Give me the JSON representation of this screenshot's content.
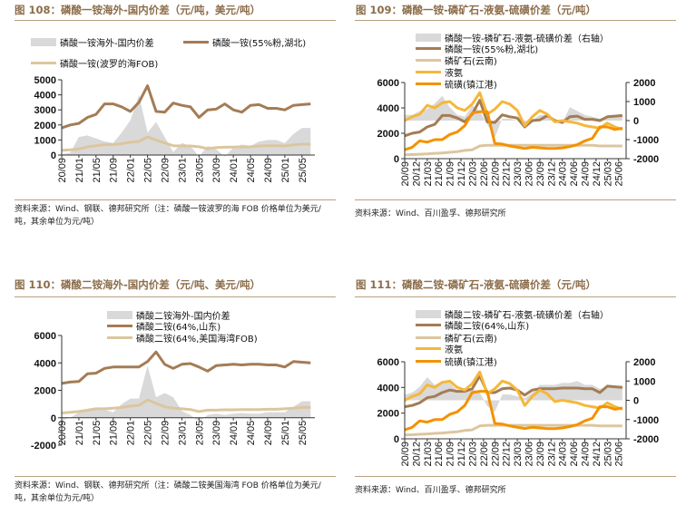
{
  "panels": [
    {
      "title": "图 108：磷酸一铵海外-国内价差（元/吨，美元/吨）",
      "source": "资料来源：Wind、钢联、德邦研究所（注：磷酸一铵波罗的海 FOB 价格单位为美元/吨，其余单位为元/吨）"
    },
    {
      "title": "图 109：磷酸一铵-磷矿石-液氨-硫磺价差（元/吨）",
      "source": "资料来源：Wind、百川盈孚、德邦研究所"
    },
    {
      "title": "图 110：磷酸二铵海外-国内价差（元/吨、美元/吨）",
      "source": "资料来源：Wind、钢联、德邦研究所（注：磷酸二铵美国海湾 FOB 价格单位为美元/吨，其余单位为元/吨）"
    },
    {
      "title": "图 111：磷酸二铵-磷矿石-液氨-硫磺价差（元/吨）",
      "source": "资料来源：Wind、百川盈孚、德邦研究所"
    }
  ],
  "chart_data": [
    {
      "type": "line",
      "title": "图 108：磷酸一铵海外-国内价差（元/吨，美元/吨）",
      "ylim": [
        0,
        5000
      ],
      "yticks": [
        0,
        1000,
        2000,
        3000,
        4000,
        5000
      ],
      "xlim": [
        "20/09",
        "25/08"
      ],
      "xticks": [
        "20/09",
        "21/01",
        "21/05",
        "21/09",
        "22/01",
        "22/05",
        "22/09",
        "23/01",
        "23/05",
        "23/09",
        "24/01",
        "24/05",
        "24/09",
        "25/01",
        "25/05"
      ],
      "x": [
        "20/09",
        "20/11",
        "21/01",
        "21/03",
        "21/05",
        "21/07",
        "21/09",
        "21/11",
        "22/01",
        "22/03",
        "22/05",
        "22/07",
        "22/09",
        "22/11",
        "23/01",
        "23/03",
        "23/05",
        "23/07",
        "23/09",
        "23/11",
        "24/01",
        "24/03",
        "24/05",
        "24/07",
        "24/09",
        "24/11",
        "25/01",
        "25/03",
        "25/05",
        "25/07"
      ],
      "legend": "top",
      "series": [
        {
          "name": "磷酸一铵海外-国内价差",
          "kind": "area",
          "axis": "left",
          "color": "#d9d9d9",
          "values": [
            50,
            150,
            1200,
            1300,
            1100,
            900,
            800,
            1500,
            2300,
            4000,
            1500,
            2200,
            1200,
            200,
            800,
            600,
            -100,
            600,
            400,
            -100,
            500,
            700,
            600,
            900,
            1000,
            1000,
            800,
            1400,
            1800,
            1800
          ]
        },
        {
          "name": "磷酸一铵(55%粉,湖北)",
          "kind": "line",
          "axis": "left",
          "color": "#a47c55",
          "values": [
            1800,
            2000,
            2100,
            2500,
            2700,
            3400,
            3400,
            3200,
            2900,
            3500,
            4600,
            2900,
            2850,
            3450,
            3300,
            3200,
            2500,
            3000,
            3050,
            3400,
            3000,
            2850,
            3300,
            3350,
            3100,
            3100,
            3000,
            3300,
            3350,
            3400
          ]
        },
        {
          "name": "磷酸一铵(波罗的海FOB)",
          "kind": "line",
          "axis": "left",
          "color": "#dcc69f",
          "values": [
            320,
            350,
            400,
            550,
            620,
            700,
            700,
            750,
            850,
            900,
            1200,
            1000,
            800,
            620,
            600,
            600,
            550,
            420,
            500,
            520,
            530,
            540,
            550,
            600,
            620,
            620,
            600,
            680,
            720,
            720
          ]
        }
      ]
    },
    {
      "type": "line",
      "title": "图 109：磷酸一铵-磷矿石-液氨-硫磺价差（元/吨）",
      "ylim": [
        0,
        6000
      ],
      "yticks": [
        0,
        2000,
        4000,
        6000
      ],
      "y2lim": [
        -2000,
        2000
      ],
      "y2ticks": [
        -2000,
        -1000,
        0,
        1000,
        2000
      ],
      "xlim": [
        "20/09",
        "25/08"
      ],
      "xticks": [
        "20/09",
        "20/12",
        "21/03",
        "21/06",
        "21/09",
        "21/12",
        "22/03",
        "22/06",
        "22/09",
        "22/12",
        "23/03",
        "23/06",
        "23/09",
        "23/12",
        "24/03",
        "24/06",
        "24/09",
        "24/12",
        "25/03",
        "25/06"
      ],
      "x": [
        "20/09",
        "20/11",
        "21/01",
        "21/03",
        "21/05",
        "21/07",
        "21/09",
        "21/11",
        "22/01",
        "22/03",
        "22/05",
        "22/07",
        "22/09",
        "22/11",
        "23/01",
        "23/03",
        "23/05",
        "23/07",
        "23/09",
        "23/11",
        "24/01",
        "24/03",
        "24/05",
        "24/07",
        "24/09",
        "24/11",
        "25/01",
        "25/03",
        "25/05",
        "25/07"
      ],
      "legend": "top",
      "series": [
        {
          "name": "磷酸一铵-磷矿石-液氨-硫磺价差（右轴）",
          "kind": "area",
          "axis": "right",
          "color": "#d9d9d9",
          "values": [
            300,
            300,
            500,
            600,
            900,
            1300,
            700,
            300,
            200,
            800,
            500,
            -200,
            -900,
            100,
            100,
            0,
            -300,
            0,
            300,
            300,
            0,
            -100,
            700,
            500,
            300,
            200,
            100,
            200,
            300,
            300
          ]
        },
        {
          "name": "磷酸一铵(55%粉,湖北)",
          "kind": "line",
          "axis": "left",
          "color": "#a47c55",
          "values": [
            1800,
            2000,
            2100,
            2500,
            2700,
            3400,
            3400,
            3200,
            2900,
            3500,
            4600,
            2900,
            2850,
            3450,
            3300,
            3200,
            2500,
            3000,
            3050,
            3400,
            3000,
            2850,
            3300,
            3350,
            3100,
            3100,
            3000,
            3300,
            3350,
            3400
          ]
        },
        {
          "name": "磷矿石(云南)",
          "kind": "line",
          "axis": "left",
          "color": "#dcc69f",
          "values": [
            300,
            320,
            350,
            380,
            420,
            450,
            500,
            550,
            650,
            700,
            1000,
            1050,
            1050,
            1050,
            1050,
            1050,
            1050,
            1050,
            1050,
            1050,
            1050,
            1050,
            1050,
            1050,
            1050,
            1050,
            1000,
            1000,
            1000,
            1000
          ]
        },
        {
          "name": "液氨",
          "kind": "line",
          "axis": "left",
          "color": "#f5b73b",
          "values": [
            3000,
            3300,
            3500,
            4200,
            4000,
            4400,
            4500,
            4000,
            3800,
            4300,
            5200,
            3500,
            3900,
            4500,
            4300,
            3800,
            2600,
            3300,
            3800,
            3500,
            2900,
            3000,
            2900,
            2800,
            2600,
            2500,
            2400,
            2800,
            2500,
            2300
          ]
        },
        {
          "name": "硫磺(镇江港)",
          "kind": "line",
          "axis": "left",
          "color": "#f39200",
          "values": [
            700,
            900,
            1400,
            1300,
            1500,
            1500,
            1900,
            2100,
            2600,
            3600,
            3700,
            3700,
            1200,
            1150,
            1000,
            900,
            800,
            900,
            850,
            800,
            800,
            850,
            950,
            1100,
            1400,
            1600,
            2500,
            2500,
            2300,
            2400
          ]
        }
      ]
    },
    {
      "type": "line",
      "title": "图 110：磷酸二铵海外-国内价差（元/吨、美元/吨）",
      "ylim": [
        -2000,
        6000
      ],
      "yticks": [
        -2000,
        0,
        2000,
        4000,
        6000
      ],
      "xlim": [
        "20/09",
        "25/08"
      ],
      "xticks": [
        "20/09",
        "21/01",
        "21/05",
        "21/09",
        "22/01",
        "22/05",
        "22/09",
        "23/01",
        "23/05",
        "23/09",
        "24/01",
        "24/05",
        "24/09",
        "25/01",
        "25/05"
      ],
      "x": [
        "20/09",
        "20/11",
        "21/01",
        "21/03",
        "21/05",
        "21/07",
        "21/09",
        "21/11",
        "22/01",
        "22/03",
        "22/05",
        "22/07",
        "22/09",
        "22/11",
        "23/01",
        "23/03",
        "23/05",
        "23/07",
        "23/09",
        "23/11",
        "24/01",
        "24/03",
        "24/05",
        "24/07",
        "24/09",
        "24/11",
        "25/01",
        "25/03",
        "25/05",
        "25/07"
      ],
      "legend": "top",
      "series": [
        {
          "name": "磷酸二铵海外-国内价差",
          "kind": "area",
          "axis": "left",
          "color": "#d9d9d9",
          "values": [
            -200,
            0,
            400,
            500,
            600,
            600,
            400,
            1000,
            1400,
            1400,
            3800,
            1500,
            1800,
            1500,
            500,
            200,
            -300,
            200,
            300,
            200,
            300,
            350,
            300,
            300,
            400,
            400,
            400,
            800,
            1200,
            1200
          ]
        },
        {
          "name": "磷酸二铵(64%,山东)",
          "kind": "line",
          "axis": "left",
          "color": "#a47c55",
          "values": [
            2500,
            2600,
            2650,
            3200,
            3250,
            3600,
            3700,
            3700,
            3700,
            3700,
            4100,
            4800,
            3900,
            3600,
            3900,
            3950,
            3700,
            3400,
            3800,
            3850,
            3900,
            3850,
            3900,
            3900,
            3850,
            3850,
            3700,
            4100,
            4050,
            4000
          ]
        },
        {
          "name": "磷酸二铵(64%,美国海湾FOB)",
          "kind": "line",
          "axis": "left",
          "color": "#dcc69f",
          "values": [
            350,
            400,
            450,
            550,
            650,
            650,
            700,
            750,
            850,
            900,
            1300,
            1050,
            800,
            700,
            650,
            600,
            450,
            550,
            550,
            580,
            580,
            600,
            600,
            600,
            620,
            620,
            650,
            700,
            750,
            750
          ]
        }
      ]
    },
    {
      "type": "line",
      "title": "图 111：磷酸二铵-磷矿石-液氨-硫磺价差（元/吨）",
      "ylim": [
        0,
        6000
      ],
      "yticks": [
        0,
        2000,
        4000,
        6000
      ],
      "y2lim": [
        -2000,
        2000
      ],
      "y2ticks": [
        -2000,
        -1000,
        0,
        1000,
        2000
      ],
      "xlim": [
        "20/09",
        "25/08"
      ],
      "xticks": [
        "20/09",
        "20/12",
        "21/03",
        "21/06",
        "21/09",
        "21/12",
        "22/03",
        "22/06",
        "22/09",
        "22/12",
        "23/03",
        "23/06",
        "23/09",
        "23/12",
        "24/03",
        "24/06",
        "24/09",
        "24/12",
        "25/03",
        "25/06"
      ],
      "x": [
        "20/09",
        "20/11",
        "21/01",
        "21/03",
        "21/05",
        "21/07",
        "21/09",
        "21/11",
        "22/01",
        "22/03",
        "22/05",
        "22/07",
        "22/09",
        "22/11",
        "23/01",
        "23/03",
        "23/05",
        "23/07",
        "23/09",
        "23/11",
        "24/01",
        "24/03",
        "24/05",
        "24/07",
        "24/09",
        "24/11",
        "25/01",
        "25/03",
        "25/05",
        "25/07"
      ],
      "legend": "top",
      "series": [
        {
          "name": "磷酸二铵-磷矿石-液氨-硫磺价差（右轴）",
          "kind": "area",
          "axis": "right",
          "color": "#d9d9d9",
          "values": [
            300,
            400,
            700,
            1200,
            800,
            1000,
            900,
            500,
            500,
            600,
            400,
            -300,
            -600,
            300,
            300,
            200,
            100,
            400,
            800,
            800,
            800,
            900,
            900,
            1000,
            800,
            800,
            600,
            700,
            700,
            700
          ]
        },
        {
          "name": "磷酸二铵(64%,山东)",
          "kind": "line",
          "axis": "left",
          "color": "#a47c55",
          "values": [
            2500,
            2600,
            2800,
            3200,
            3300,
            3600,
            3800,
            3700,
            3700,
            3900,
            4900,
            3600,
            3600,
            3900,
            3950,
            3800,
            3400,
            3800,
            3900,
            3900,
            3900,
            3950,
            3950,
            3950,
            3900,
            3900,
            3600,
            4100,
            4050,
            4000
          ]
        },
        {
          "name": "磷矿石(云南)",
          "kind": "line",
          "axis": "left",
          "color": "#dcc69f",
          "values": [
            300,
            320,
            350,
            380,
            420,
            450,
            500,
            550,
            650,
            700,
            1000,
            1050,
            1050,
            1050,
            1050,
            1050,
            1050,
            1050,
            1050,
            1050,
            1050,
            1050,
            1050,
            1050,
            1050,
            1050,
            1000,
            1000,
            1000,
            1000
          ]
        },
        {
          "name": "液氨",
          "kind": "line",
          "axis": "left",
          "color": "#f5b73b",
          "values": [
            3000,
            3300,
            3500,
            4200,
            4000,
            4400,
            4500,
            4000,
            3800,
            4300,
            5200,
            3500,
            3900,
            4500,
            4300,
            3800,
            2600,
            3300,
            3800,
            3500,
            2900,
            3000,
            2900,
            2800,
            2600,
            2500,
            2400,
            2800,
            2500,
            2300
          ]
        },
        {
          "name": "硫磺(镇江港)",
          "kind": "line",
          "axis": "left",
          "color": "#f39200",
          "values": [
            700,
            900,
            1400,
            1300,
            1500,
            1500,
            1900,
            2100,
            2600,
            3600,
            3700,
            3700,
            1200,
            1150,
            1000,
            900,
            800,
            900,
            850,
            800,
            800,
            850,
            950,
            1100,
            1400,
            1600,
            2500,
            2500,
            2300,
            2400
          ]
        }
      ]
    }
  ]
}
